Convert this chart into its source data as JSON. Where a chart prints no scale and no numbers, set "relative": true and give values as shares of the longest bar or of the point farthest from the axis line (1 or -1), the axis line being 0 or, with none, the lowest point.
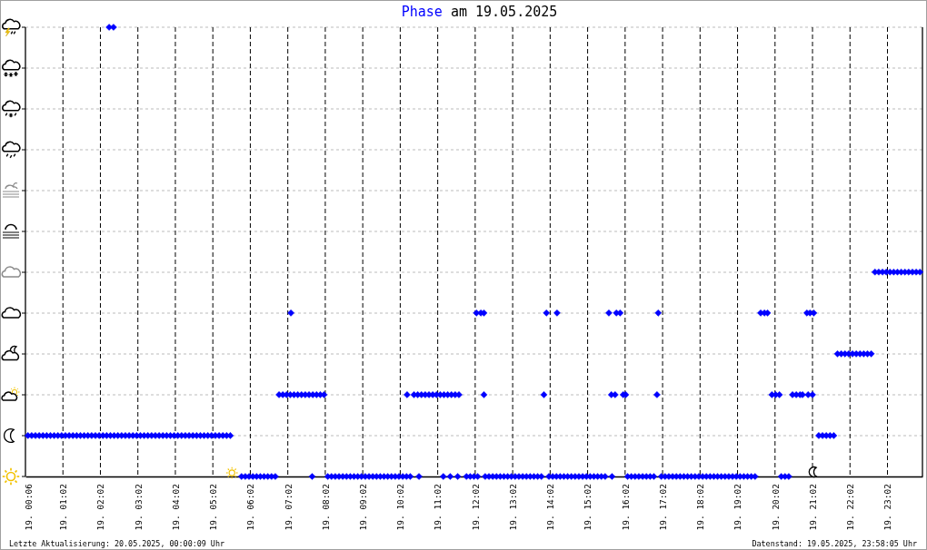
{
  "chart_data": {
    "type": "scatter",
    "title": "Phase am 19.05.2025",
    "relative": true,
    "xlim": [
      "2025-05-19T00:02",
      "2025-05-19T23:58"
    ],
    "xticks": [
      {
        "value": "2025-05-19T00:06",
        "label": "19. 00:06"
      },
      {
        "value": "2025-05-19T01:02",
        "label": "19. 01:02"
      },
      {
        "value": "2025-05-19T02:02",
        "label": "19. 02:02"
      },
      {
        "value": "2025-05-19T03:02",
        "label": "19. 03:02"
      },
      {
        "value": "2025-05-19T04:02",
        "label": "19. 04:02"
      },
      {
        "value": "2025-05-19T05:02",
        "label": "19. 05:02"
      },
      {
        "value": "2025-05-19T06:02",
        "label": "19. 06:02"
      },
      {
        "value": "2025-05-19T07:02",
        "label": "19. 07:02"
      },
      {
        "value": "2025-05-19T08:02",
        "label": "19. 08:02"
      },
      {
        "value": "2025-05-19T09:02",
        "label": "19. 09:02"
      },
      {
        "value": "2025-05-19T10:02",
        "label": "19. 10:02"
      },
      {
        "value": "2025-05-19T11:02",
        "label": "19. 11:02"
      },
      {
        "value": "2025-05-19T12:02",
        "label": "19. 12:02"
      },
      {
        "value": "2025-05-19T13:02",
        "label": "19. 13:02"
      },
      {
        "value": "2025-05-19T14:02",
        "label": "19. 14:02"
      },
      {
        "value": "2025-05-19T15:02",
        "label": "19. 15:02"
      },
      {
        "value": "2025-05-19T16:02",
        "label": "19. 16:02"
      },
      {
        "value": "2025-05-19T17:02",
        "label": "19. 17:02"
      },
      {
        "value": "2025-05-19T18:02",
        "label": "19. 18:02"
      },
      {
        "value": "2025-05-19T19:02",
        "label": "19. 19:02"
      },
      {
        "value": "2025-05-19T20:02",
        "label": "19. 20:02"
      },
      {
        "value": "2025-05-19T21:02",
        "label": "19. 21:02"
      },
      {
        "value": "2025-05-19T22:02",
        "label": "19. 22:02"
      },
      {
        "value": "2025-05-19T23:02",
        "label": "19. 23:02"
      }
    ],
    "grid": true,
    "marker": "diamond",
    "series": [
      {
        "color": "#0000ff",
        "x": [
          "2025-05-19T00:06",
          "2025-05-19T00:12",
          "2025-05-19T00:18",
          "2025-05-19T00:24",
          "2025-05-19T00:30",
          "2025-05-19T00:36",
          "2025-05-19T00:42",
          "2025-05-19T00:48",
          "2025-05-19T00:54",
          "2025-05-19T01:00",
          "2025-05-19T01:06",
          "2025-05-19T01:12",
          "2025-05-19T01:18",
          "2025-05-19T01:24",
          "2025-05-19T01:30",
          "2025-05-19T01:36",
          "2025-05-19T01:42",
          "2025-05-19T01:48",
          "2025-05-19T01:54",
          "2025-05-19T02:00",
          "2025-05-19T02:06",
          "2025-05-19T02:12",
          "2025-05-19T02:18",
          "2025-05-19T02:24",
          "2025-05-19T02:30",
          "2025-05-19T02:36",
          "2025-05-19T02:42",
          "2025-05-19T02:48",
          "2025-05-19T02:54",
          "2025-05-19T03:00",
          "2025-05-19T03:06",
          "2025-05-19T03:12",
          "2025-05-19T03:18",
          "2025-05-19T03:24",
          "2025-05-19T03:30",
          "2025-05-19T03:36",
          "2025-05-19T03:42",
          "2025-05-19T03:48",
          "2025-05-19T03:54",
          "2025-05-19T04:00",
          "2025-05-19T04:06",
          "2025-05-19T04:12",
          "2025-05-19T04:18",
          "2025-05-19T04:24",
          "2025-05-19T04:30",
          "2025-05-19T04:36",
          "2025-05-19T04:42",
          "2025-05-19T04:48",
          "2025-05-19T04:54",
          "2025-05-19T05:00",
          "2025-05-19T05:06",
          "2025-05-19T05:12",
          "2025-05-19T05:18",
          "2025-05-19T05:24",
          "2025-05-19T05:30",
          "2025-05-19T02:16",
          "2025-05-19T02:23",
          "2025-05-19T05:48",
          "2025-05-19T05:54",
          "2025-05-19T06:00",
          "2025-05-19T06:06",
          "2025-05-19T06:12",
          "2025-05-19T06:18",
          "2025-05-19T06:24",
          "2025-05-19T06:30",
          "2025-05-19T06:36",
          "2025-05-19T06:42",
          "2025-05-19T07:41",
          "2025-05-19T08:06",
          "2025-05-19T08:12",
          "2025-05-19T08:18",
          "2025-05-19T08:24",
          "2025-05-19T08:30",
          "2025-05-19T08:36",
          "2025-05-19T08:42",
          "2025-05-19T08:48",
          "2025-05-19T08:54",
          "2025-05-19T09:00",
          "2025-05-19T09:06",
          "2025-05-19T09:12",
          "2025-05-19T09:18",
          "2025-05-19T09:24",
          "2025-05-19T09:30",
          "2025-05-19T09:36",
          "2025-05-19T09:42",
          "2025-05-19T09:48",
          "2025-05-19T09:54",
          "2025-05-19T10:00",
          "2025-05-19T10:06",
          "2025-05-19T10:12",
          "2025-05-19T10:18",
          "2025-05-19T10:32",
          "2025-05-19T11:11",
          "2025-05-19T11:22",
          "2025-05-19T11:34",
          "2025-05-19T11:48",
          "2025-05-19T11:54",
          "2025-05-19T12:00",
          "2025-05-19T12:06",
          "2025-05-19T12:18",
          "2025-05-19T12:24",
          "2025-05-19T12:30",
          "2025-05-19T12:36",
          "2025-05-19T12:42",
          "2025-05-19T12:48",
          "2025-05-19T12:54",
          "2025-05-19T13:00",
          "2025-05-19T13:06",
          "2025-05-19T13:12",
          "2025-05-19T13:18",
          "2025-05-19T13:24",
          "2025-05-19T13:30",
          "2025-05-19T13:36",
          "2025-05-19T13:42",
          "2025-05-19T13:48",
          "2025-05-19T14:00",
          "2025-05-19T14:06",
          "2025-05-19T14:12",
          "2025-05-19T14:18",
          "2025-05-19T14:24",
          "2025-05-19T14:30",
          "2025-05-19T14:36",
          "2025-05-19T14:42",
          "2025-05-19T14:48",
          "2025-05-19T14:54",
          "2025-05-19T15:00",
          "2025-05-19T15:06",
          "2025-05-19T15:12",
          "2025-05-19T15:18",
          "2025-05-19T15:24",
          "2025-05-19T15:30",
          "2025-05-19T15:41",
          "2025-05-19T16:06",
          "2025-05-19T16:12",
          "2025-05-19T16:18",
          "2025-05-19T16:24",
          "2025-05-19T16:30",
          "2025-05-19T16:36",
          "2025-05-19T16:42",
          "2025-05-19T16:48",
          "2025-05-19T17:00",
          "2025-05-19T17:06",
          "2025-05-19T17:12",
          "2025-05-19T17:18",
          "2025-05-19T17:24",
          "2025-05-19T17:30",
          "2025-05-19T17:36",
          "2025-05-19T17:42",
          "2025-05-19T17:48",
          "2025-05-19T17:54",
          "2025-05-19T18:00",
          "2025-05-19T18:06",
          "2025-05-19T18:12",
          "2025-05-19T18:18",
          "2025-05-19T18:24",
          "2025-05-19T18:30",
          "2025-05-19T18:36",
          "2025-05-19T18:42",
          "2025-05-19T18:48",
          "2025-05-19T18:54",
          "2025-05-19T19:00",
          "2025-05-19T19:06",
          "2025-05-19T19:12",
          "2025-05-19T19:18",
          "2025-05-19T19:24",
          "2025-05-19T19:30",
          "2025-05-19T20:12",
          "2025-05-19T20:18",
          "2025-05-19T20:24",
          "2025-05-19T06:48",
          "2025-05-19T06:54",
          "2025-05-19T07:00",
          "2025-05-19T07:06",
          "2025-05-19T07:12",
          "2025-05-19T07:18",
          "2025-05-19T07:24",
          "2025-05-19T07:30",
          "2025-05-19T07:36",
          "2025-05-19T07:42",
          "2025-05-19T07:48",
          "2025-05-19T07:54",
          "2025-05-19T08:00",
          "2025-05-19T10:13",
          "2025-05-19T10:24",
          "2025-05-19T10:30",
          "2025-05-19T10:36",
          "2025-05-19T10:42",
          "2025-05-19T10:48",
          "2025-05-19T10:54",
          "2025-05-19T11:00",
          "2025-05-19T11:06",
          "2025-05-19T11:12",
          "2025-05-19T11:18",
          "2025-05-19T11:24",
          "2025-05-19T11:30",
          "2025-05-19T11:36",
          "2025-05-19T12:16",
          "2025-05-19T13:52",
          "2025-05-19T15:40",
          "2025-05-19T15:46",
          "2025-05-19T15:59",
          "2025-05-19T16:03",
          "2025-05-19T16:53",
          "2025-05-19T19:57",
          "2025-05-19T20:03",
          "2025-05-19T20:09",
          "2025-05-19T20:30",
          "2025-05-19T20:36",
          "2025-05-19T20:42",
          "2025-05-19T20:46",
          "2025-05-19T20:55",
          "2025-05-19T21:02",
          "2025-05-19T07:07",
          "2025-05-19T12:04",
          "2025-05-19T12:11",
          "2025-05-19T12:16",
          "2025-05-19T13:56",
          "2025-05-19T14:13",
          "2025-05-19T15:36",
          "2025-05-19T15:48",
          "2025-05-19T15:54",
          "2025-05-19T16:55",
          "2025-05-19T19:39",
          "2025-05-19T19:45",
          "2025-05-19T19:50",
          "2025-05-19T20:53",
          "2025-05-19T20:58",
          "2025-05-19T21:04",
          "2025-05-19T21:12",
          "2025-05-19T21:18",
          "2025-05-19T21:24",
          "2025-05-19T21:30",
          "2025-05-19T21:36",
          "2025-05-19T21:42",
          "2025-05-19T21:48",
          "2025-05-19T21:54",
          "2025-05-19T22:00",
          "2025-05-19T22:06",
          "2025-05-19T22:12",
          "2025-05-19T22:18",
          "2025-05-19T22:24",
          "2025-05-19T22:30",
          "2025-05-19T22:36",
          "2025-05-19T22:42",
          "2025-05-19T22:48",
          "2025-05-19T22:54",
          "2025-05-19T23:00",
          "2025-05-19T23:06",
          "2025-05-19T23:12",
          "2025-05-19T23:18",
          "2025-05-19T23:24",
          "2025-05-19T23:30",
          "2025-05-19T23:36",
          "2025-05-19T23:42",
          "2025-05-19T23:48",
          "2025-05-19T23:54"
        ],
        "values": [
          0.091,
          0.091,
          0.091,
          0.091,
          0.091,
          0.091,
          0.091,
          0.091,
          0.091,
          0.091,
          0.091,
          0.091,
          0.091,
          0.091,
          0.091,
          0.091,
          0.091,
          0.091,
          0.091,
          0.091,
          0.091,
          0.091,
          0.091,
          0.091,
          0.091,
          0.091,
          0.091,
          0.091,
          0.091,
          0.091,
          0.091,
          0.091,
          0.091,
          0.091,
          0.091,
          0.091,
          0.091,
          0.091,
          0.091,
          0.091,
          0.091,
          0.091,
          0.091,
          0.091,
          0.091,
          0.091,
          0.091,
          0.091,
          0.091,
          0.091,
          0.091,
          0.091,
          0.091,
          0.091,
          0.091,
          1,
          1,
          0,
          0,
          0,
          0,
          0,
          0,
          0,
          0,
          0,
          0,
          0,
          0,
          0,
          0,
          0,
          0,
          0,
          0,
          0,
          0,
          0,
          0,
          0,
          0,
          0,
          0,
          0,
          0,
          0,
          0,
          0,
          0,
          0,
          0,
          0,
          0,
          0,
          0,
          0,
          0,
          0,
          0,
          0,
          0,
          0,
          0,
          0,
          0,
          0,
          0,
          0,
          0,
          0,
          0,
          0,
          0,
          0,
          0,
          0,
          0,
          0,
          0,
          0,
          0,
          0,
          0,
          0,
          0,
          0,
          0,
          0,
          0,
          0,
          0,
          0,
          0,
          0,
          0,
          0,
          0,
          0,
          0,
          0,
          0,
          0,
          0,
          0,
          0,
          0,
          0,
          0,
          0,
          0,
          0,
          0,
          0,
          0,
          0,
          0,
          0,
          0,
          0,
          0,
          0,
          0,
          0,
          0,
          0,
          0,
          0,
          0,
          0,
          0.182,
          0.182,
          0.182,
          0.182,
          0.182,
          0.182,
          0.182,
          0.182,
          0.182,
          0.182,
          0.182,
          0.182,
          0.182,
          0.182,
          0.182,
          0.182,
          0.182,
          0.182,
          0.182,
          0.182,
          0.182,
          0.182,
          0.182,
          0.182,
          0.182,
          0.182,
          0.182,
          0.182,
          0.182,
          0.182,
          0.182,
          0.182,
          0.182,
          0.182,
          0.182,
          0.182,
          0.182,
          0.182,
          0.182,
          0.182,
          0.182,
          0.182,
          0.182,
          0.364,
          0.364,
          0.364,
          0.364,
          0.364,
          0.364,
          0.364,
          0.364,
          0.364,
          0.364,
          0.364,
          0.364,
          0.364,
          0.364,
          0.364,
          0.364,
          0.091,
          0.091,
          0.091,
          0.091,
          0.091,
          0.273,
          0.273,
          0.273,
          0.273,
          0.273,
          0.273,
          0.273,
          0.273,
          0.273,
          0.273,
          0.455,
          0.455,
          0.455,
          0.455,
          0.455,
          0.455,
          0.455,
          0.455,
          0.455,
          0.455,
          0.455,
          0.455,
          0.455
        ]
      }
    ],
    "annotations": [
      "Letzte Aktualisierung: 20.05.2025, 00:00:09 Uhr",
      "Datenstand: 19.05.2025, 23:58:05 Uhr"
    ]
  }
}
